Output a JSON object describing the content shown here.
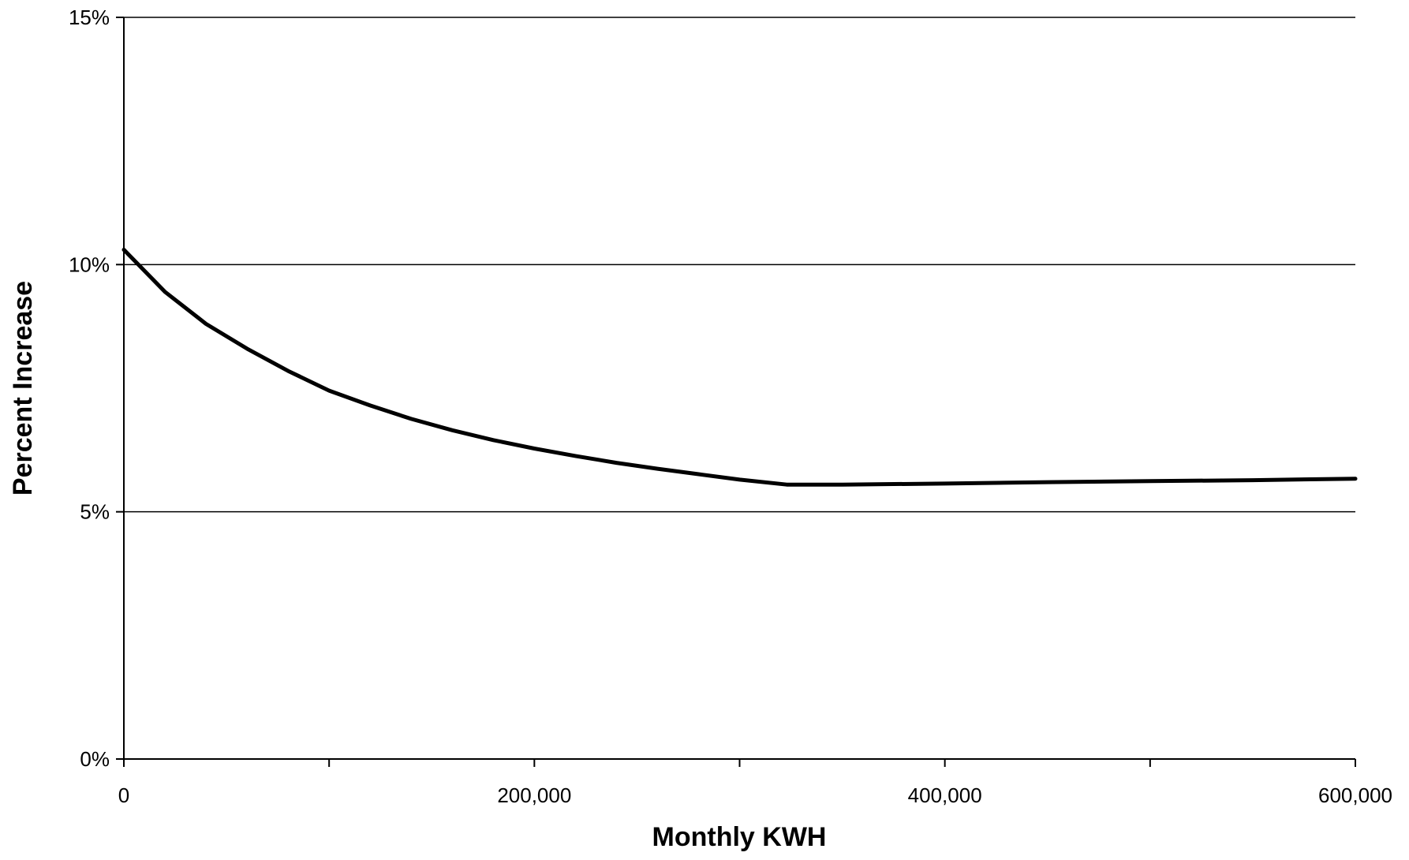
{
  "chart_data": {
    "type": "line",
    "title": "",
    "xlabel": "Monthly KWH",
    "ylabel": "Percent Increase",
    "xlim": [
      0,
      600000
    ],
    "ylim": [
      0,
      15
    ],
    "x_ticks": [
      0,
      200000,
      400000,
      600000
    ],
    "x_tick_labels": [
      "0",
      "200,000",
      "400,000",
      "600,000"
    ],
    "y_ticks": [
      0,
      5,
      10,
      15
    ],
    "y_tick_labels": [
      "0%",
      "5%",
      "10%",
      "15%"
    ],
    "grid": true,
    "legend": "none",
    "series": [
      {
        "color": "#000000",
        "x": [
          0,
          20000,
          40000,
          60000,
          80000,
          100000,
          120000,
          140000,
          160000,
          180000,
          200000,
          220000,
          240000,
          260000,
          280000,
          300000,
          323000,
          350000,
          400000,
          450000,
          500000,
          550000,
          600000
        ],
        "y": [
          10.3,
          9.45,
          8.8,
          8.3,
          7.85,
          7.45,
          7.15,
          6.88,
          6.65,
          6.45,
          6.28,
          6.13,
          5.99,
          5.87,
          5.76,
          5.65,
          5.55,
          5.55,
          5.57,
          5.6,
          5.62,
          5.64,
          5.67
        ]
      }
    ]
  }
}
